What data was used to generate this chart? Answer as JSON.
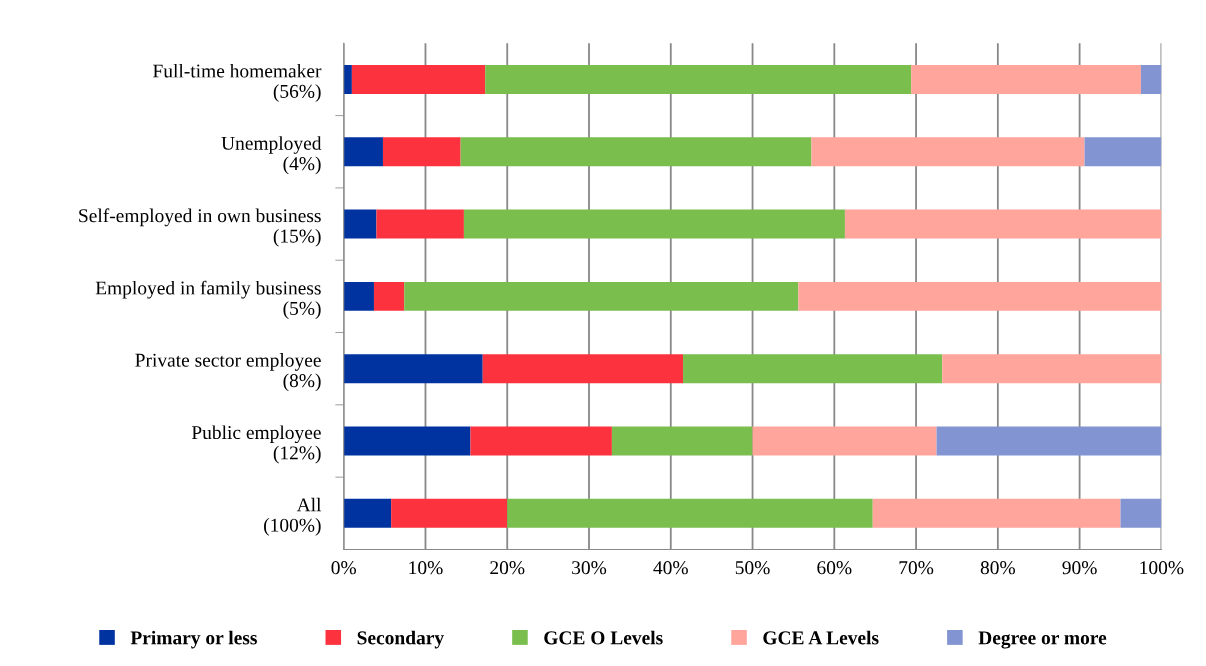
{
  "chart_data": {
    "type": "bar",
    "orientation": "horizontal",
    "stacked": true,
    "categories": [
      "Full-time homemaker\n(56%)",
      "Unemployed\n(4%)",
      "Self-employed in own business\n(15%)",
      "Employed in family business\n(5%)",
      "Private sector employee\n(8%)",
      "Public employee\n(12%)",
      "All\n(100%)"
    ],
    "series": [
      {
        "name": "Primary or less",
        "color": "#0033a0",
        "values": [
          1.0,
          4.8,
          4.0,
          3.7,
          17.0,
          15.5,
          5.8
        ]
      },
      {
        "name": "Secondary",
        "color": "#fc323e",
        "values": [
          16.3,
          9.5,
          10.7,
          3.7,
          24.5,
          17.3,
          14.2
        ]
      },
      {
        "name": "GCE O Levels",
        "color": "#7abe4e",
        "values": [
          52.1,
          42.9,
          46.6,
          48.2,
          31.7,
          17.2,
          44.7
        ]
      },
      {
        "name": "GCE A Levels",
        "color": "#ffa59b",
        "values": [
          28.1,
          33.4,
          38.7,
          44.4,
          26.8,
          22.5,
          30.3
        ]
      },
      {
        "name": "Degree or more",
        "color": "#8294d1",
        "values": [
          2.5,
          9.4,
          0,
          0,
          0,
          27.5,
          5.0
        ]
      }
    ],
    "xlim": [
      0,
      100
    ],
    "xticks": [
      {
        "value": 0,
        "label": "0%"
      },
      {
        "value": 10,
        "label": "10%"
      },
      {
        "value": 20,
        "label": "20%"
      },
      {
        "value": 30,
        "label": "30%"
      },
      {
        "value": 40,
        "label": "40%"
      },
      {
        "value": 50,
        "label": "50%"
      },
      {
        "value": 60,
        "label": "60%"
      },
      {
        "value": 70,
        "label": "70%"
      },
      {
        "value": 80,
        "label": "80%"
      },
      {
        "value": 90,
        "label": "90%"
      },
      {
        "value": 100,
        "label": "100%"
      }
    ],
    "grid": "x",
    "legend": "bottom"
  }
}
